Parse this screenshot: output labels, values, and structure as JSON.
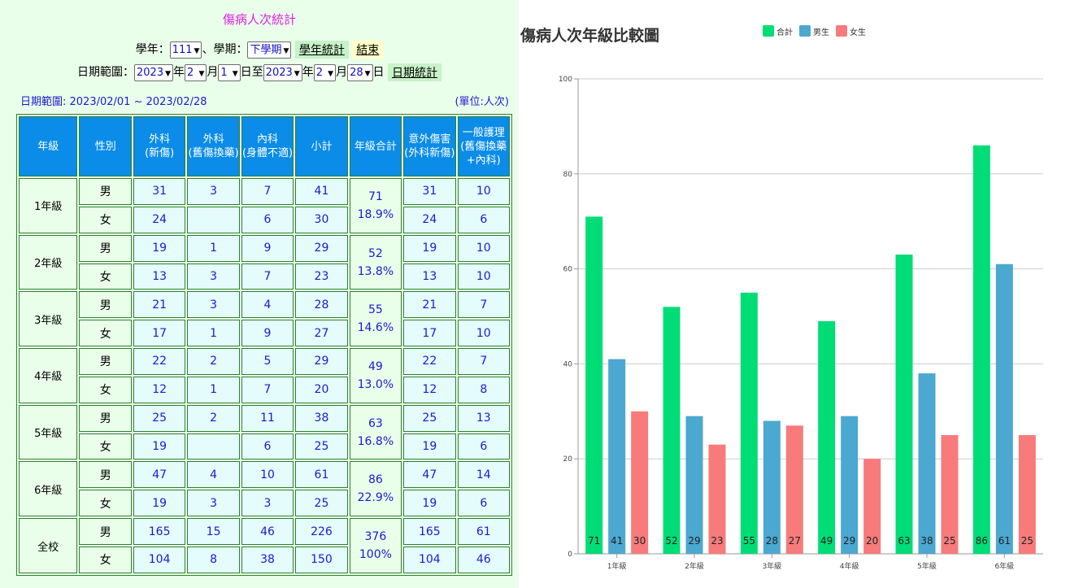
{
  "left_panel": {
    "title": "傷病人次統計",
    "school_year_label": "學年：",
    "school_year_value": "111",
    "semester_sep": "、學期：",
    "semester_value": "下學期",
    "year_stat_button": "學年統計",
    "end_button": "結束",
    "date_range_label": "日期範圍：",
    "start_year": "2023",
    "year_suffix": "年",
    "start_month": "2",
    "month_suffix": "月",
    "start_day": "1",
    "day_to": "日至",
    "end_year": "2023",
    "end_month": "2",
    "end_day": "28",
    "day_suffix": "日",
    "date_stat_button": "日期統計",
    "range_text": "日期範圍: 2023/02/01 ~ 2023/02/28",
    "unit_text": "(單位:人次)"
  },
  "table": {
    "headers": [
      "年級",
      "性別",
      "外科\n(新傷)",
      "外科\n(舊傷換藥)",
      "內科\n(身體不適)",
      "小計",
      "年級合計",
      "意外傷害\n(外科新傷)",
      "一般護理\n(舊傷換藥\n+內科)"
    ],
    "groups": [
      {
        "grade": "1年級",
        "total": "71",
        "pct": "18.9%",
        "rows": [
          {
            "sex": "男",
            "surg_new": "31",
            "surg_old": "3",
            "internal": "7",
            "subtotal": "41",
            "accident": "31",
            "general": "10"
          },
          {
            "sex": "女",
            "surg_new": "24",
            "surg_old": "",
            "internal": "6",
            "subtotal": "30",
            "accident": "24",
            "general": "6"
          }
        ]
      },
      {
        "grade": "2年級",
        "total": "52",
        "pct": "13.8%",
        "rows": [
          {
            "sex": "男",
            "surg_new": "19",
            "surg_old": "1",
            "internal": "9",
            "subtotal": "29",
            "accident": "19",
            "general": "10"
          },
          {
            "sex": "女",
            "surg_new": "13",
            "surg_old": "3",
            "internal": "7",
            "subtotal": "23",
            "accident": "13",
            "general": "10"
          }
        ]
      },
      {
        "grade": "3年級",
        "total": "55",
        "pct": "14.6%",
        "rows": [
          {
            "sex": "男",
            "surg_new": "21",
            "surg_old": "3",
            "internal": "4",
            "subtotal": "28",
            "accident": "21",
            "general": "7"
          },
          {
            "sex": "女",
            "surg_new": "17",
            "surg_old": "1",
            "internal": "9",
            "subtotal": "27",
            "accident": "17",
            "general": "10"
          }
        ]
      },
      {
        "grade": "4年級",
        "total": "49",
        "pct": "13.0%",
        "rows": [
          {
            "sex": "男",
            "surg_new": "22",
            "surg_old": "2",
            "internal": "5",
            "subtotal": "29",
            "accident": "22",
            "general": "7"
          },
          {
            "sex": "女",
            "surg_new": "12",
            "surg_old": "1",
            "internal": "7",
            "subtotal": "20",
            "accident": "12",
            "general": "8"
          }
        ]
      },
      {
        "grade": "5年級",
        "total": "63",
        "pct": "16.8%",
        "rows": [
          {
            "sex": "男",
            "surg_new": "25",
            "surg_old": "2",
            "internal": "11",
            "subtotal": "38",
            "accident": "25",
            "general": "13"
          },
          {
            "sex": "女",
            "surg_new": "19",
            "surg_old": "",
            "internal": "6",
            "subtotal": "25",
            "accident": "19",
            "general": "6"
          }
        ]
      },
      {
        "grade": "6年級",
        "total": "86",
        "pct": "22.9%",
        "rows": [
          {
            "sex": "男",
            "surg_new": "47",
            "surg_old": "4",
            "internal": "10",
            "subtotal": "61",
            "accident": "47",
            "general": "14"
          },
          {
            "sex": "女",
            "surg_new": "19",
            "surg_old": "3",
            "internal": "3",
            "subtotal": "25",
            "accident": "19",
            "general": "6"
          }
        ]
      },
      {
        "grade": "全校",
        "total": "376",
        "pct": "100%",
        "rows": [
          {
            "sex": "男",
            "surg_new": "165",
            "surg_old": "15",
            "internal": "46",
            "subtotal": "226",
            "accident": "165",
            "general": "61"
          },
          {
            "sex": "女",
            "surg_new": "104",
            "surg_old": "8",
            "internal": "38",
            "subtotal": "150",
            "accident": "104",
            "general": "46"
          }
        ]
      }
    ]
  },
  "colors": {
    "total": "#00dd77",
    "male": "#4ba8d0",
    "female": "#f77b7b",
    "header_bg": "#0a8ce8",
    "panel_bg": "#eaffea",
    "cell_bg": "#e4fcfc",
    "value_text": "#1a1ad0",
    "title_text": "#e020e0"
  },
  "chart_data": {
    "type": "bar",
    "title": "傷病人次年級比較圖",
    "categories": [
      "1年級",
      "2年級",
      "3年級",
      "4年級",
      "5年級",
      "6年級"
    ],
    "series": [
      {
        "name": "合計",
        "values": [
          71,
          52,
          55,
          49,
          63,
          86
        ]
      },
      {
        "name": "男生",
        "values": [
          41,
          29,
          28,
          29,
          38,
          61
        ]
      },
      {
        "name": "女生",
        "values": [
          30,
          23,
          27,
          20,
          25,
          25
        ]
      }
    ],
    "yticks": [
      "0",
      "20",
      "40",
      "60",
      "80",
      "100"
    ],
    "ylim": [
      0,
      100
    ],
    "grid": true,
    "legend": "top-center",
    "data_labels": "inside-bottom"
  }
}
